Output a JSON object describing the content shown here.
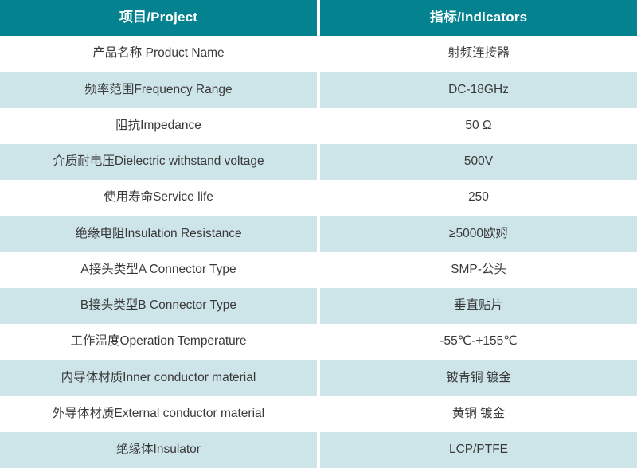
{
  "colors": {
    "header_bg": "#04828F",
    "header_text": "#FFFFFF",
    "row_bg": "#FFFFFF",
    "row_alt_bg": "#CDE4E9",
    "body_text": "#3A3A3A",
    "divider": "#FFFFFF"
  },
  "table": {
    "headers": [
      {
        "label": "项目/Project"
      },
      {
        "label": "指标/Indicators"
      }
    ],
    "rows": [
      {
        "project": "产品名称 Product Name",
        "indicator": "射频连接器"
      },
      {
        "project": "频率范围Frequency Range",
        "indicator": "DC-18GHz"
      },
      {
        "project": "阻抗Impedance",
        "indicator": "50 Ω"
      },
      {
        "project": "介质耐电压Dielectric withstand voltage",
        "indicator": "500V"
      },
      {
        "project": "使用寿命Service life",
        "indicator": "250"
      },
      {
        "project": "绝缘电阻Insulation Resistance",
        "indicator": "≥5000欧姆"
      },
      {
        "project": "A接头类型A Connector Type",
        "indicator": "SMP-公头"
      },
      {
        "project": "B接头类型B Connector Type",
        "indicator": "垂直贴片"
      },
      {
        "project": "工作温度Operation Temperature",
        "indicator": "-55℃-+155℃"
      },
      {
        "project": "内导体材质Inner conductor material",
        "indicator": "铍青铜 镀金"
      },
      {
        "project": "外导体材质External conductor material",
        "indicator": "黄铜 镀金"
      },
      {
        "project": "绝缘体Insulator",
        "indicator": "LCP/PTFE"
      }
    ]
  },
  "chart_data": {
    "type": "table",
    "title": "",
    "columns": [
      "项目/Project",
      "指标/Indicators"
    ],
    "rows": [
      [
        "产品名称 Product Name",
        "射频连接器"
      ],
      [
        "频率范围Frequency Range",
        "DC-18GHz"
      ],
      [
        "阻抗Impedance",
        "50 Ω"
      ],
      [
        "介质耐电压Dielectric withstand voltage",
        "500V"
      ],
      [
        "使用寿命Service life",
        "250"
      ],
      [
        "绝缘电阻Insulation Resistance",
        "≥5000欧姆"
      ],
      [
        "A接头类型A Connector Type",
        "SMP-公头"
      ],
      [
        "B接头类型B Connector Type",
        "垂直贴片"
      ],
      [
        "工作温度Operation Temperature",
        "-55℃-+155℃"
      ],
      [
        "内导体材质Inner conductor material",
        "铍青铜 镀金"
      ],
      [
        "外导体材质External conductor material",
        "黄铜 镀金"
      ],
      [
        "绝缘体Insulator",
        "LCP/PTFE"
      ]
    ],
    "layout": {
      "header_style": "teal solid, bold white centered text",
      "body_style": "alternating white / light-blue rows, centered dark text",
      "columns_equal_width": true
    }
  }
}
